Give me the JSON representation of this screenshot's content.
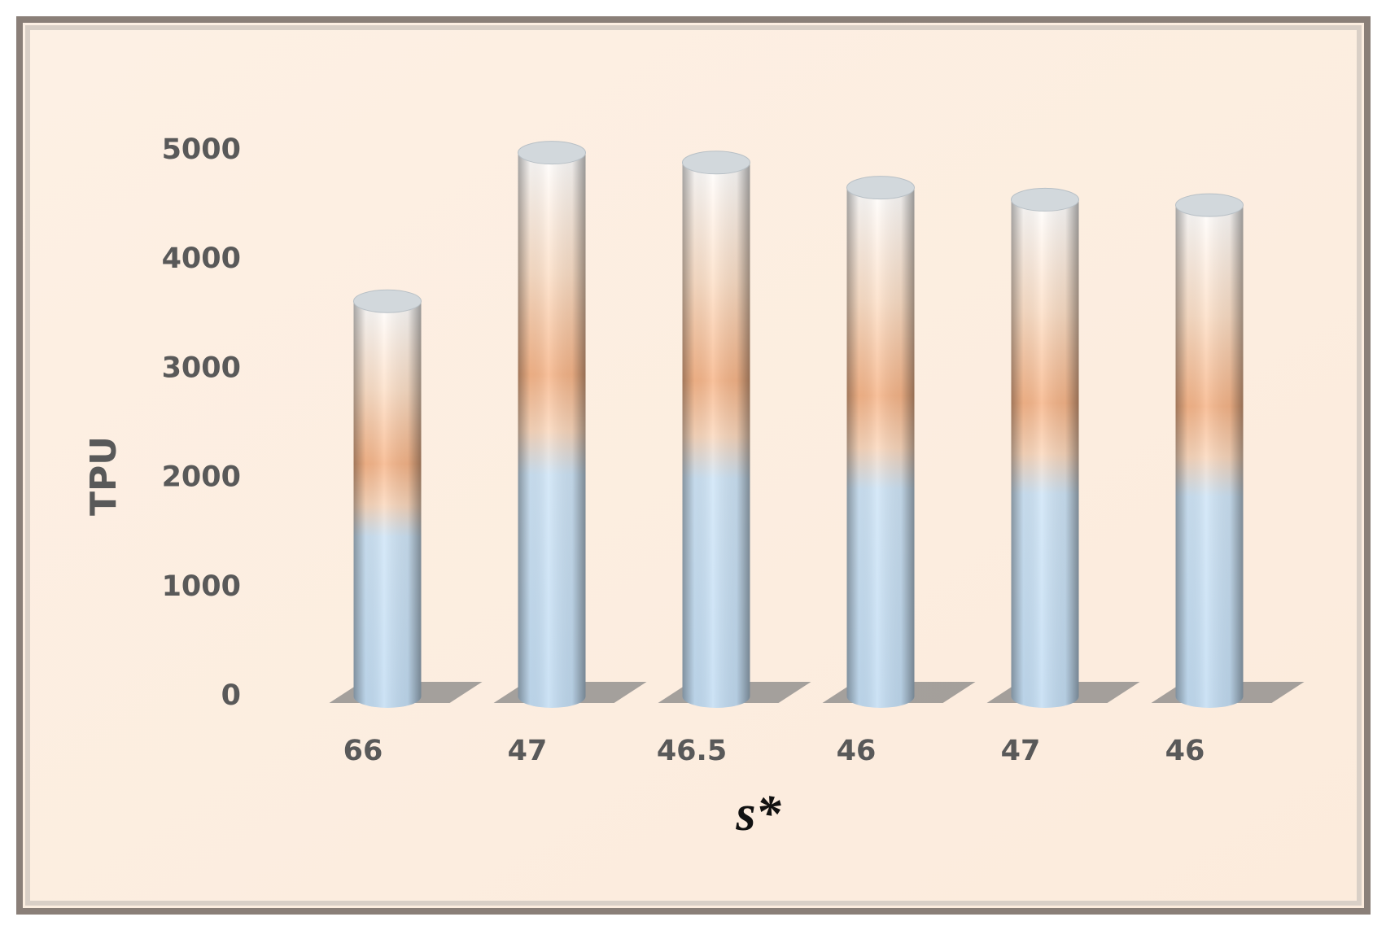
{
  "chart_data": {
    "type": "bar",
    "y_label": "TPU",
    "x_label": "s*",
    "categories": [
      "66",
      "47",
      "46.5",
      "46",
      "47",
      "46"
    ],
    "values": [
      3620,
      4980,
      4890,
      4660,
      4550,
      4500
    ],
    "ylim": [
      0,
      5000
    ],
    "yticks": [
      0,
      1000,
      2000,
      3000,
      4000,
      5000
    ],
    "grid": false
  }
}
